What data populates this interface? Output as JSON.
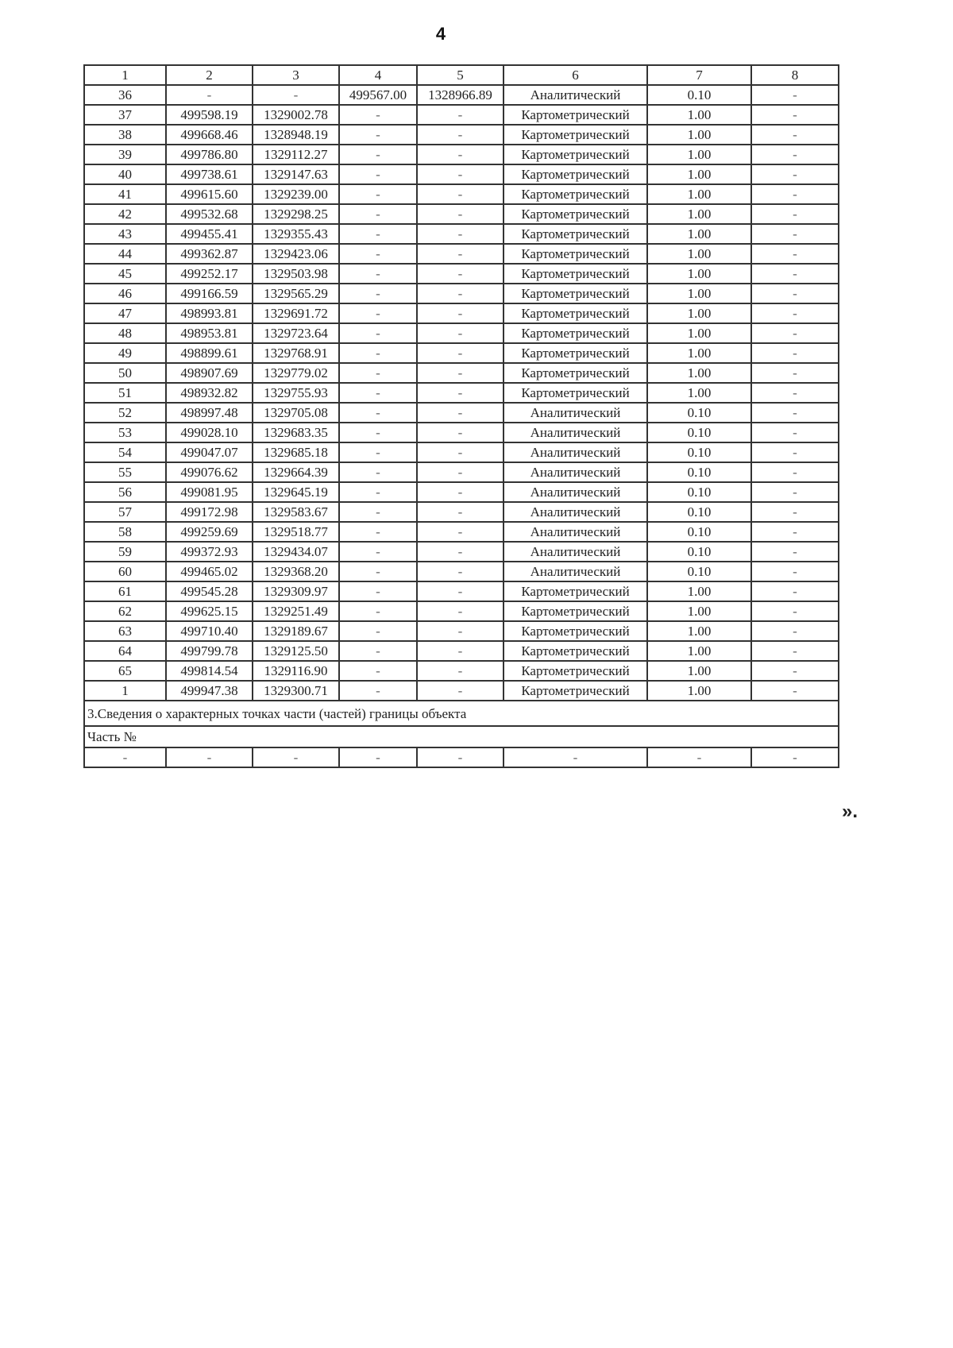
{
  "page_number": "4",
  "table": {
    "headers": [
      "1",
      "2",
      "3",
      "4",
      "5",
      "6",
      "7",
      "8"
    ],
    "rows": [
      [
        "36",
        "-",
        "-",
        "499567.00",
        "1328966.89",
        "Аналитический",
        "0.10",
        "-"
      ],
      [
        "37",
        "499598.19",
        "1329002.78",
        "-",
        "-",
        "Картометрический",
        "1.00",
        "-"
      ],
      [
        "38",
        "499668.46",
        "1328948.19",
        "-",
        "-",
        "Картометрический",
        "1.00",
        "-"
      ],
      [
        "39",
        "499786.80",
        "1329112.27",
        "-",
        "-",
        "Картометрический",
        "1.00",
        "-"
      ],
      [
        "40",
        "499738.61",
        "1329147.63",
        "-",
        "-",
        "Картометрический",
        "1.00",
        "-"
      ],
      [
        "41",
        "499615.60",
        "1329239.00",
        "-",
        "-",
        "Картометрический",
        "1.00",
        "-"
      ],
      [
        "42",
        "499532.68",
        "1329298.25",
        "-",
        "-",
        "Картометрический",
        "1.00",
        "-"
      ],
      [
        "43",
        "499455.41",
        "1329355.43",
        "-",
        "-",
        "Картометрический",
        "1.00",
        "-"
      ],
      [
        "44",
        "499362.87",
        "1329423.06",
        "-",
        "-",
        "Картометрический",
        "1.00",
        "-"
      ],
      [
        "45",
        "499252.17",
        "1329503.98",
        "-",
        "-",
        "Картометрический",
        "1.00",
        "-"
      ],
      [
        "46",
        "499166.59",
        "1329565.29",
        "-",
        "-",
        "Картометрический",
        "1.00",
        "-"
      ],
      [
        "47",
        "498993.81",
        "1329691.72",
        "-",
        "-",
        "Картометрический",
        "1.00",
        "-"
      ],
      [
        "48",
        "498953.81",
        "1329723.64",
        "-",
        "-",
        "Картометрический",
        "1.00",
        "-"
      ],
      [
        "49",
        "498899.61",
        "1329768.91",
        "-",
        "-",
        "Картометрический",
        "1.00",
        "-"
      ],
      [
        "50",
        "498907.69",
        "1329779.02",
        "-",
        "-",
        "Картометрический",
        "1.00",
        "-"
      ],
      [
        "51",
        "498932.82",
        "1329755.93",
        "-",
        "-",
        "Картометрический",
        "1.00",
        "-"
      ],
      [
        "52",
        "498997.48",
        "1329705.08",
        "-",
        "-",
        "Аналитический",
        "0.10",
        "-"
      ],
      [
        "53",
        "499028.10",
        "1329683.35",
        "-",
        "-",
        "Аналитический",
        "0.10",
        "-"
      ],
      [
        "54",
        "499047.07",
        "1329685.18",
        "-",
        "-",
        "Аналитический",
        "0.10",
        "-"
      ],
      [
        "55",
        "499076.62",
        "1329664.39",
        "-",
        "-",
        "Аналитический",
        "0.10",
        "-"
      ],
      [
        "56",
        "499081.95",
        "1329645.19",
        "-",
        "-",
        "Аналитический",
        "0.10",
        "-"
      ],
      [
        "57",
        "499172.98",
        "1329583.67",
        "-",
        "-",
        "Аналитический",
        "0.10",
        "-"
      ],
      [
        "58",
        "499259.69",
        "1329518.77",
        "-",
        "-",
        "Аналитический",
        "0.10",
        "-"
      ],
      [
        "59",
        "499372.93",
        "1329434.07",
        "-",
        "-",
        "Аналитический",
        "0.10",
        "-"
      ],
      [
        "60",
        "499465.02",
        "1329368.20",
        "-",
        "-",
        "Аналитический",
        "0.10",
        "-"
      ],
      [
        "61",
        "499545.28",
        "1329309.97",
        "-",
        "-",
        "Картометрический",
        "1.00",
        "-"
      ],
      [
        "62",
        "499625.15",
        "1329251.49",
        "-",
        "-",
        "Картометрический",
        "1.00",
        "-"
      ],
      [
        "63",
        "499710.40",
        "1329189.67",
        "-",
        "-",
        "Картометрический",
        "1.00",
        "-"
      ],
      [
        "64",
        "499799.78",
        "1329125.50",
        "-",
        "-",
        "Картометрический",
        "1.00",
        "-"
      ],
      [
        "65",
        "499814.54",
        "1329116.90",
        "-",
        "-",
        "Картометрический",
        "1.00",
        "-"
      ],
      [
        "1",
        "499947.38",
        "1329300.71",
        "-",
        "-",
        "Картометрический",
        "1.00",
        "-"
      ]
    ],
    "section_title": "3.Сведения о характерных точках части (частей) границы объекта",
    "part_label": "Часть №",
    "part_row": [
      "-",
      "-",
      "-",
      "-",
      "-",
      "-",
      "-",
      "-"
    ]
  },
  "closing_mark": "»."
}
